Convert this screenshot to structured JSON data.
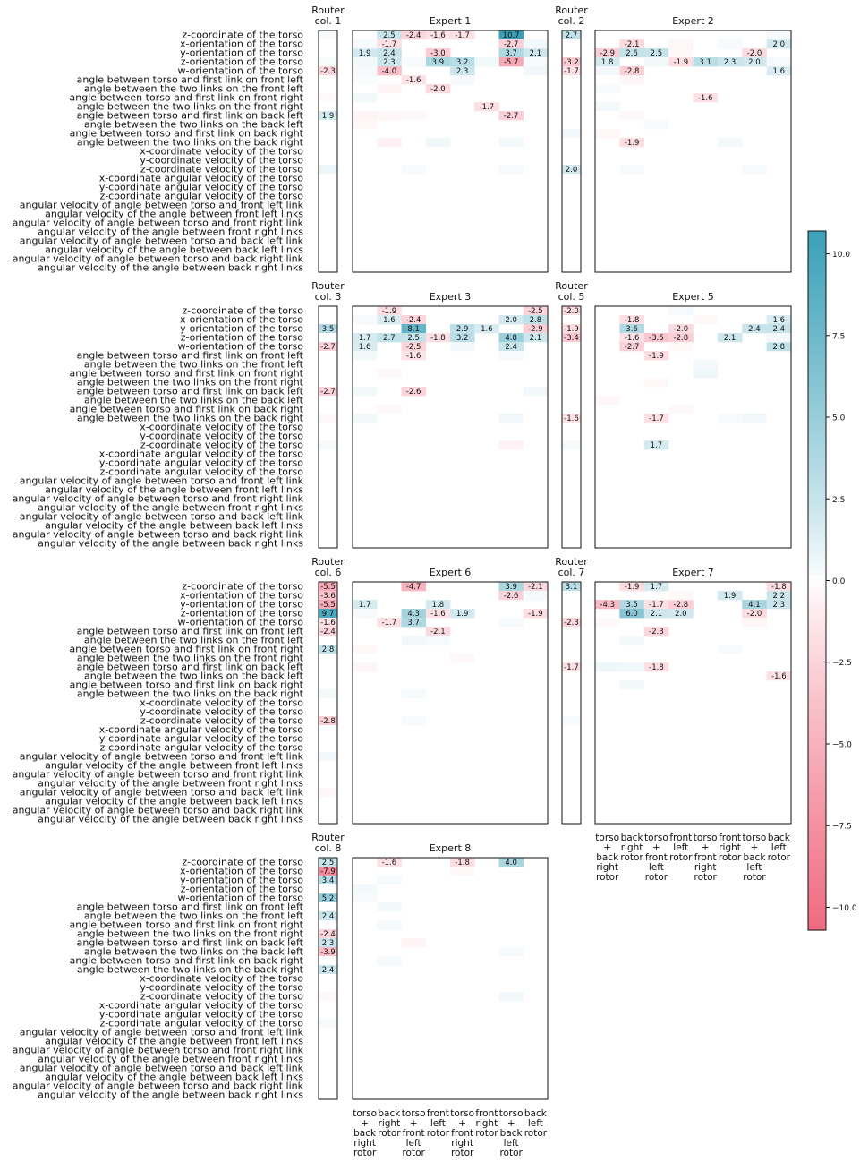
{
  "chart_data": {
    "type": "heatmap",
    "rows": [
      "z-coordinate of the torso",
      "x-orientation of the torso",
      "y-orientation of the torso",
      "z-orientation of the torso",
      "w-orientation of the torso",
      "angle between torso and first link on front left",
      "angle between the two links on the front left",
      "angle between torso and first link on front right",
      "angle between the two links on the front right",
      "angle between torso and first link on back left",
      "angle between the two links on the back left",
      "angle between torso and first link on back right",
      "angle between the two links on the back right",
      "x-coordinate velocity of the torso",
      "y-coordinate velocity of the torso",
      "z-coordinate velocity of the torso",
      "x-coordinate angular velocity of the torso",
      "y-coordinate angular velocity of the torso",
      "z-coordinate angular velocity of the torso",
      "angular velocity of angle between torso and front left link",
      "angular velocity of the angle between front left links",
      "angular velocity of angle between torso and front right link",
      "angular velocity of the angle between front right links",
      "angular velocity of angle between torso and back left link",
      "angular velocity of the angle between back left links",
      "angular velocity of angle between torso and back right link",
      "angular velocity of the angle between back right links"
    ],
    "columns": [
      [
        "torso",
        "+",
        "back",
        "right",
        "rotor"
      ],
      [
        "back",
        "right",
        "rotor"
      ],
      [
        "torso",
        "+",
        "front",
        "left",
        "rotor"
      ],
      [
        "front",
        "left",
        "rotor"
      ],
      [
        "torso",
        "+",
        "front",
        "right",
        "rotor"
      ],
      [
        "front",
        "right",
        "rotor"
      ],
      [
        "torso",
        "+",
        "back",
        "left",
        "rotor"
      ],
      [
        "back",
        "left",
        "rotor"
      ]
    ],
    "panels": [
      {
        "router_title": [
          "Router",
          "col. 1"
        ],
        "expert_title": "Expert 1",
        "router": {
          "0": 0.3,
          "3": 0.2,
          "4": -2.3,
          "7": -0.2,
          "9": 1.9,
          "15": 0.7
        },
        "expert": [
          [
            0,
            1,
            2.5
          ],
          [
            0,
            2,
            -2.4
          ],
          [
            0,
            3,
            -1.6
          ],
          [
            0,
            4,
            -1.7
          ],
          [
            0,
            6,
            10.7
          ],
          [
            1,
            1,
            -1.7
          ],
          [
            1,
            6,
            -2.7
          ],
          [
            2,
            0,
            1.9
          ],
          [
            2,
            1,
            2.4
          ],
          [
            2,
            3,
            -3.0
          ],
          [
            2,
            6,
            3.7
          ],
          [
            2,
            7,
            2.1
          ],
          [
            3,
            1,
            2.3
          ],
          [
            3,
            3,
            3.9
          ],
          [
            3,
            4,
            3.2
          ],
          [
            3,
            6,
            -5.7
          ],
          [
            4,
            1,
            -4.0
          ],
          [
            4,
            4,
            2.3
          ],
          [
            5,
            2,
            -1.6
          ],
          [
            6,
            3,
            -2.0
          ],
          [
            8,
            5,
            -1.7
          ],
          [
            9,
            6,
            -2.7
          ],
          [
            3,
            0,
            0.4
          ],
          [
            3,
            2,
            0.3
          ],
          [
            3,
            5,
            0.5
          ],
          [
            3,
            7,
            0.3
          ],
          [
            1,
            0,
            0.3
          ],
          [
            1,
            7,
            0.4
          ],
          [
            4,
            0,
            0.3
          ],
          [
            4,
            7,
            0.5
          ],
          [
            5,
            0,
            0.2
          ],
          [
            5,
            4,
            0.3
          ],
          [
            6,
            1,
            -0.5
          ],
          [
            7,
            0,
            0.4
          ],
          [
            9,
            0,
            -0.5
          ],
          [
            9,
            1,
            -0.4
          ],
          [
            9,
            2,
            -0.3
          ],
          [
            10,
            0,
            -0.4
          ],
          [
            12,
            1,
            -0.6
          ],
          [
            12,
            3,
            0.5
          ],
          [
            12,
            6,
            0.4
          ],
          [
            15,
            2,
            0.3
          ],
          [
            15,
            6,
            0.3
          ]
        ]
      },
      {
        "router_title": [
          "Router",
          "col. 2"
        ],
        "expert_title": "Expert 2",
        "router": {
          "0": 2.7,
          "3": -3.2,
          "4": -1.7,
          "15": 2.0,
          "11": 0.4
        },
        "expert": [
          [
            1,
            1,
            -2.1
          ],
          [
            1,
            7,
            2.0
          ],
          [
            2,
            0,
            -2.9
          ],
          [
            2,
            1,
            2.6
          ],
          [
            2,
            2,
            2.5
          ],
          [
            2,
            6,
            -2.0
          ],
          [
            3,
            0,
            1.8
          ],
          [
            3,
            3,
            -1.9
          ],
          [
            3,
            4,
            3.1
          ],
          [
            3,
            5,
            2.3
          ],
          [
            3,
            6,
            2.0
          ],
          [
            4,
            1,
            -2.8
          ],
          [
            4,
            7,
            1.6
          ],
          [
            7,
            4,
            -1.6
          ],
          [
            12,
            1,
            -1.9
          ],
          [
            0,
            7,
            0.3
          ],
          [
            1,
            3,
            -0.4
          ],
          [
            1,
            5,
            0.3
          ],
          [
            2,
            3,
            -0.3
          ],
          [
            3,
            2,
            0.5
          ],
          [
            3,
            7,
            0.3
          ],
          [
            4,
            0,
            0.4
          ],
          [
            5,
            1,
            -0.4
          ],
          [
            6,
            0,
            0.3
          ],
          [
            8,
            0,
            0.4
          ],
          [
            9,
            1,
            -0.3
          ],
          [
            10,
            2,
            0.3
          ],
          [
            11,
            0,
            -0.4
          ],
          [
            12,
            5,
            0.4
          ],
          [
            15,
            1,
            0.3
          ],
          [
            15,
            6,
            0.3
          ]
        ]
      },
      {
        "router_title": [
          "Router",
          "col. 3"
        ],
        "expert_title": "Expert 3",
        "router": {
          "2": 3.5,
          "4": -2.7,
          "9": -2.7,
          "12": -0.3,
          "15": 0.3
        },
        "expert": [
          [
            0,
            1,
            -1.9
          ],
          [
            0,
            7,
            -2.5
          ],
          [
            1,
            1,
            1.6
          ],
          [
            1,
            2,
            -2.4
          ],
          [
            1,
            6,
            2.0
          ],
          [
            1,
            7,
            2.8
          ],
          [
            2,
            2,
            8.1
          ],
          [
            2,
            4,
            2.9
          ],
          [
            2,
            5,
            1.6
          ],
          [
            2,
            7,
            -2.9
          ],
          [
            3,
            0,
            1.7
          ],
          [
            3,
            1,
            2.7
          ],
          [
            3,
            2,
            2.5
          ],
          [
            3,
            3,
            -1.8
          ],
          [
            3,
            4,
            3.2
          ],
          [
            3,
            6,
            4.8
          ],
          [
            3,
            7,
            2.1
          ],
          [
            4,
            0,
            1.6
          ],
          [
            4,
            2,
            -2.5
          ],
          [
            4,
            6,
            2.4
          ],
          [
            5,
            2,
            -1.6
          ],
          [
            9,
            2,
            -2.6
          ],
          [
            1,
            0,
            0.3
          ],
          [
            4,
            4,
            0.4
          ],
          [
            5,
            0,
            0.4
          ],
          [
            5,
            6,
            0.3
          ],
          [
            7,
            1,
            -0.3
          ],
          [
            9,
            0,
            0.4
          ],
          [
            9,
            7,
            0.4
          ],
          [
            11,
            1,
            -0.3
          ],
          [
            12,
            0,
            0.4
          ],
          [
            12,
            6,
            0.5
          ],
          [
            15,
            6,
            -0.6
          ]
        ]
      },
      {
        "router_title": [
          "Router",
          "col. 5"
        ],
        "expert_title": "Expert 5",
        "router": {
          "0": -2.0,
          "2": -1.9,
          "3": -3.4,
          "12": -1.6,
          "15": 0.3
        },
        "expert": [
          [
            1,
            1,
            -1.8
          ],
          [
            1,
            7,
            1.6
          ],
          [
            2,
            1,
            3.6
          ],
          [
            2,
            3,
            -2.0
          ],
          [
            2,
            6,
            2.4
          ],
          [
            2,
            7,
            2.4
          ],
          [
            3,
            1,
            -1.6
          ],
          [
            3,
            2,
            -3.5
          ],
          [
            3,
            3,
            -2.8
          ],
          [
            3,
            5,
            2.1
          ],
          [
            4,
            1,
            -2.7
          ],
          [
            4,
            7,
            2.8
          ],
          [
            5,
            2,
            -1.9
          ],
          [
            12,
            2,
            -1.7
          ],
          [
            15,
            2,
            1.7
          ],
          [
            0,
            3,
            0.3
          ],
          [
            1,
            4,
            -0.3
          ],
          [
            3,
            7,
            0.4
          ],
          [
            4,
            3,
            -0.3
          ],
          [
            6,
            4,
            0.4
          ],
          [
            7,
            4,
            0.6
          ],
          [
            8,
            2,
            -0.3
          ],
          [
            10,
            0,
            -0.4
          ],
          [
            11,
            3,
            -0.3
          ],
          [
            12,
            6,
            0.5
          ],
          [
            12,
            5,
            0.3
          ]
        ]
      },
      {
        "router_title": [
          "Router",
          "col. 6"
        ],
        "expert_title": "Expert 6",
        "router": {
          "0": -5.5,
          "1": -3.6,
          "2": -5.5,
          "3": 9.7,
          "4": -1.6,
          "5": -2.4,
          "7": 2.8,
          "15": -2.8,
          "12": 0.4,
          "19": 0.4,
          "23": -0.4
        },
        "expert": [
          [
            0,
            2,
            -4.7
          ],
          [
            0,
            6,
            3.9
          ],
          [
            0,
            7,
            -2.1
          ],
          [
            1,
            6,
            -2.6
          ],
          [
            2,
            0,
            1.7
          ],
          [
            2,
            3,
            1.8
          ],
          [
            3,
            2,
            4.3
          ],
          [
            3,
            3,
            -1.6
          ],
          [
            3,
            4,
            1.9
          ],
          [
            3,
            7,
            -1.9
          ],
          [
            4,
            1,
            -1.7
          ],
          [
            4,
            2,
            3.7
          ],
          [
            5,
            3,
            -2.1
          ],
          [
            1,
            7,
            0.3
          ],
          [
            3,
            0,
            0.3
          ],
          [
            4,
            6,
            0.3
          ],
          [
            6,
            2,
            0.5
          ],
          [
            6,
            3,
            0.3
          ],
          [
            7,
            0,
            -0.3
          ],
          [
            8,
            4,
            -0.3
          ],
          [
            9,
            0,
            -0.4
          ],
          [
            12,
            2,
            0.3
          ],
          [
            15,
            2,
            0.3
          ]
        ]
      },
      {
        "router_title": [
          "Router",
          "col. 7"
        ],
        "expert_title": "Expert 7",
        "router": {
          "0": 3.1,
          "4": -2.3,
          "9": -1.7,
          "15": 0.3
        },
        "expert": [
          [
            0,
            1,
            -1.9
          ],
          [
            0,
            2,
            1.7
          ],
          [
            0,
            7,
            -1.8
          ],
          [
            1,
            5,
            1.9
          ],
          [
            1,
            7,
            2.2
          ],
          [
            2,
            0,
            -4.3
          ],
          [
            2,
            1,
            3.5
          ],
          [
            2,
            2,
            -1.7
          ],
          [
            2,
            3,
            -2.8
          ],
          [
            2,
            6,
            4.1
          ],
          [
            2,
            7,
            2.3
          ],
          [
            3,
            1,
            6.0
          ],
          [
            3,
            2,
            2.1
          ],
          [
            3,
            3,
            2.0
          ],
          [
            3,
            6,
            -2.0
          ],
          [
            5,
            2,
            -2.3
          ],
          [
            9,
            2,
            -1.8
          ],
          [
            10,
            7,
            -1.6
          ],
          [
            9,
            0,
            0.6
          ],
          [
            9,
            1,
            0.5
          ],
          [
            11,
            1,
            0.4
          ],
          [
            4,
            0,
            -0.3
          ],
          [
            4,
            6,
            -0.4
          ],
          [
            6,
            1,
            0.4
          ],
          [
            1,
            3,
            -0.3
          ],
          [
            7,
            5,
            0.3
          ]
        ]
      },
      {
        "router_title": [
          "Router",
          "col. 8"
        ],
        "expert_title": "Expert 8",
        "router": {
          "0": 2.5,
          "1": -7.9,
          "2": 3.4,
          "4": 5.2,
          "6": 2.4,
          "8": -2.4,
          "9": 2.3,
          "10": -3.9,
          "12": 2.4,
          "15": -0.3,
          "18": 0.3
        },
        "expert": [
          [
            0,
            1,
            -1.6
          ],
          [
            0,
            4,
            -1.8
          ],
          [
            0,
            6,
            4.0
          ],
          [
            1,
            4,
            -0.3
          ],
          [
            2,
            1,
            0.3
          ],
          [
            3,
            0,
            0.4
          ],
          [
            4,
            0,
            0.3
          ],
          [
            5,
            1,
            0.4
          ],
          [
            7,
            1,
            0.3
          ],
          [
            9,
            2,
            -0.5
          ],
          [
            10,
            6,
            0.3
          ],
          [
            11,
            1,
            0.3
          ],
          [
            15,
            6,
            0.4
          ]
        ]
      }
    ],
    "colorbar": {
      "ticks": [
        "10.0",
        "7.5",
        "5.0",
        "2.5",
        "0.0",
        "−2.5",
        "−5.0",
        "−7.5",
        "−10.0"
      ],
      "range": [
        -10.7,
        10.7
      ],
      "positive_color": "#3aa0b8",
      "negative_color": "#f06a80",
      "label_threshold": 1.5
    }
  }
}
